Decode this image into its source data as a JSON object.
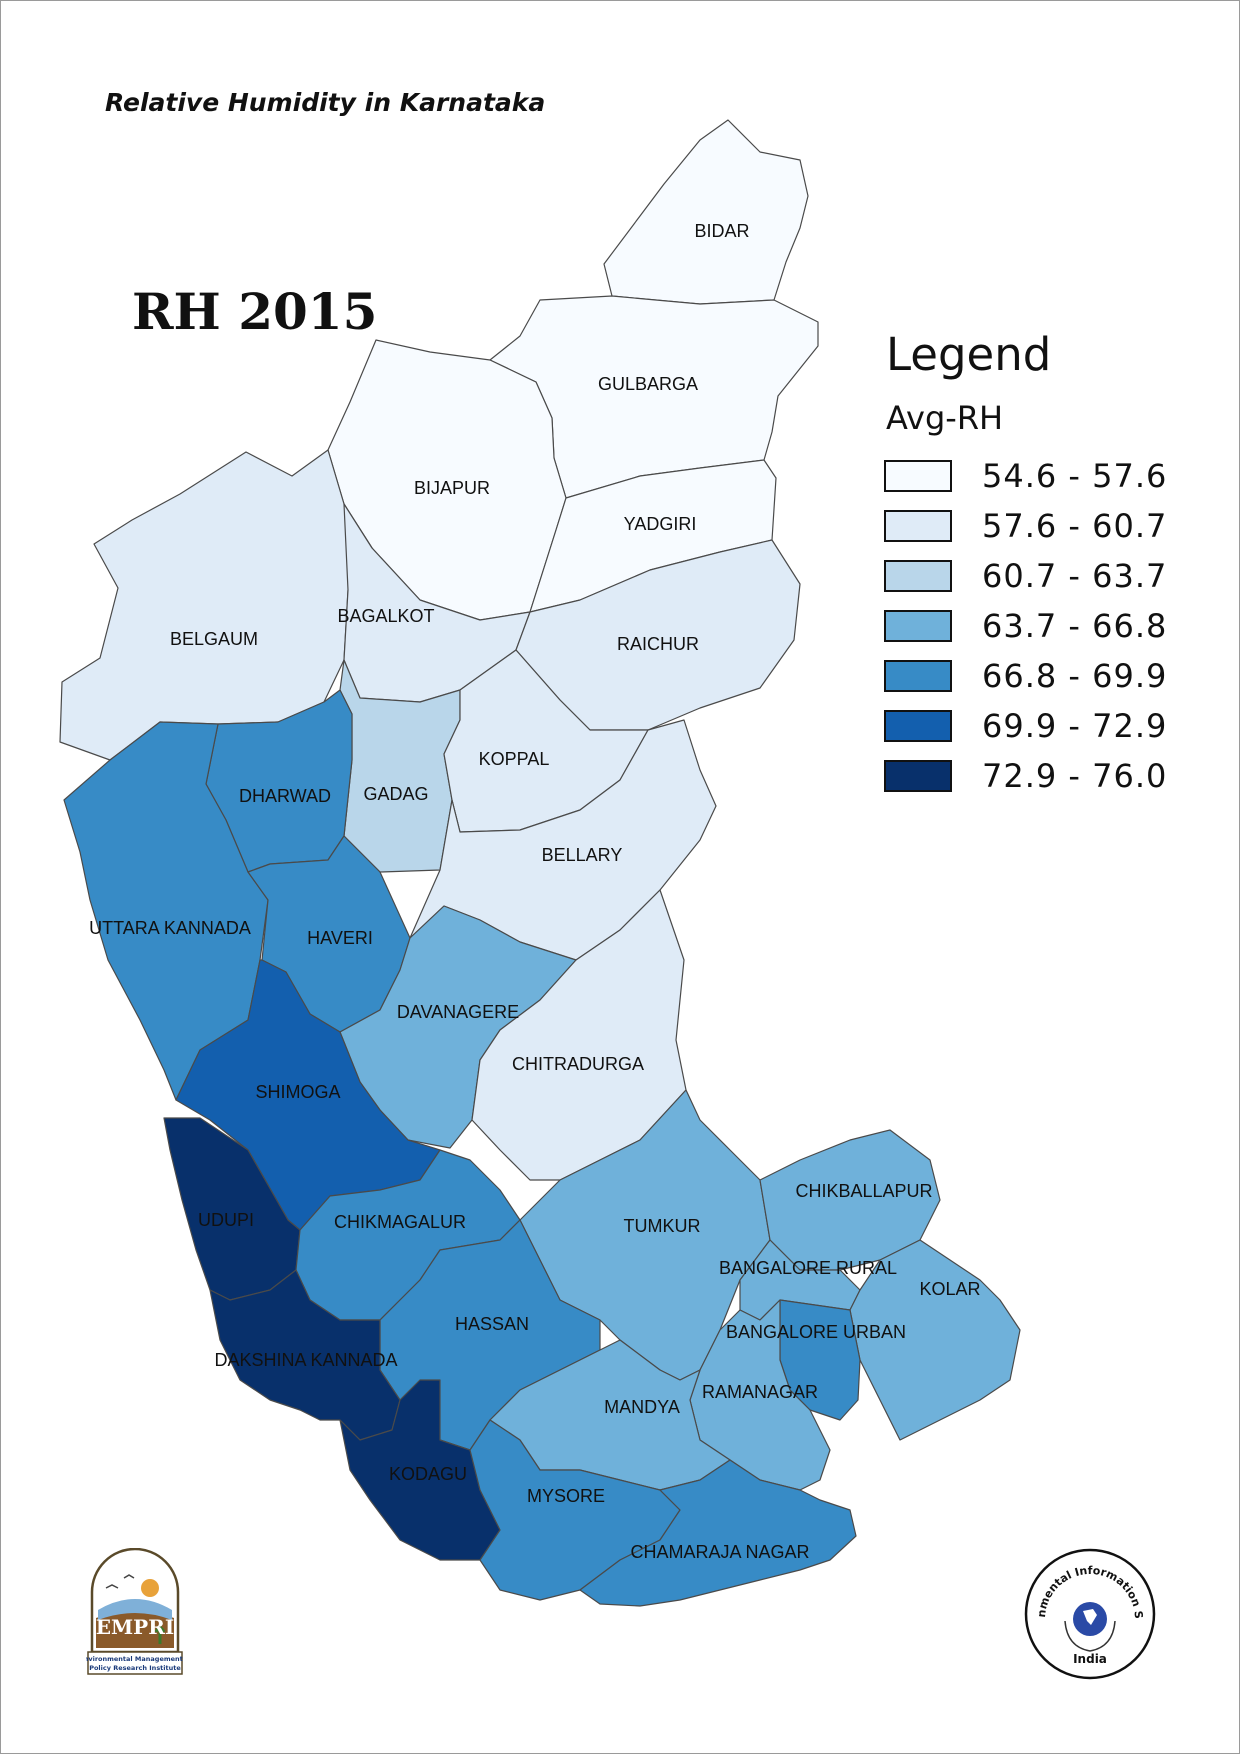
{
  "title": "Relative Humidity in Karnataka",
  "map_title": "RH 2015",
  "legend": {
    "heading": "Legend",
    "field": "Avg-RH",
    "classes": [
      {
        "label": "54.6 - 57.6",
        "color": "#f7fbff"
      },
      {
        "label": "57.6 - 60.7",
        "color": "#dfebf7"
      },
      {
        "label": "60.7 - 63.7",
        "color": "#b9d6ea"
      },
      {
        "label": "63.7 - 66.8",
        "color": "#6fb1da"
      },
      {
        "label": "66.8 - 69.9",
        "color": "#378bc6"
      },
      {
        "label": "69.9 - 72.9",
        "color": "#135fae"
      },
      {
        "label": "72.9 - 76.0",
        "color": "#08306b"
      }
    ]
  },
  "districts": [
    {
      "name": "BIDAR",
      "class": 0
    },
    {
      "name": "GULBARGA",
      "class": 0
    },
    {
      "name": "BIJAPUR",
      "class": 0
    },
    {
      "name": "YADGIRI",
      "class": 0
    },
    {
      "name": "BELGAUM",
      "class": 1
    },
    {
      "name": "BAGALKOT",
      "class": 1
    },
    {
      "name": "RAICHUR",
      "class": 1
    },
    {
      "name": "GADAG",
      "class": 2
    },
    {
      "name": "KOPPAL",
      "class": 1
    },
    {
      "name": "DHARWAD",
      "class": 4
    },
    {
      "name": "BELLARY",
      "class": 1
    },
    {
      "name": "UTTARA KANNADA",
      "class": 4
    },
    {
      "name": "HAVERI",
      "class": 4
    },
    {
      "name": "DAVANAGERE",
      "class": 3
    },
    {
      "name": "CHITRADURGA",
      "class": 1
    },
    {
      "name": "SHIMOGA",
      "class": 5
    },
    {
      "name": "UDUPI",
      "class": 6
    },
    {
      "name": "CHIKMAGALUR",
      "class": 4
    },
    {
      "name": "TUMKUR",
      "class": 3
    },
    {
      "name": "CHIKBALLAPUR",
      "class": 3
    },
    {
      "name": "BANGALORE RURAL",
      "class": 3
    },
    {
      "name": "KOLAR",
      "class": 3
    },
    {
      "name": "HASSAN",
      "class": 4
    },
    {
      "name": "BANGALORE URBAN",
      "class": 4
    },
    {
      "name": "DAKSHINA KANNADA",
      "class": 6
    },
    {
      "name": "RAMANAGAR",
      "class": 3
    },
    {
      "name": "MANDYA",
      "class": 3
    },
    {
      "name": "KODAGU",
      "class": 6
    },
    {
      "name": "MYSORE",
      "class": 4
    },
    {
      "name": "CHAMARAJA NAGAR",
      "class": 4
    }
  ],
  "logos": {
    "empri_text": "EMPRI",
    "empri_caption_1": "Environmental Management &",
    "empri_caption_2": "Policy Research Institute",
    "eis_text": "Environmental Information System",
    "eis_country": "India"
  }
}
